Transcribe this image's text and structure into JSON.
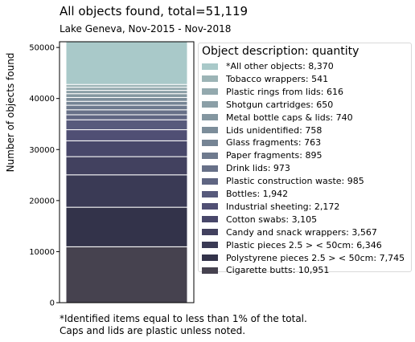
{
  "chart_data": {
    "type": "bar",
    "title": "All objects found,  total=51,119",
    "subtitle": "Lake Geneva, Nov-2015 - Nov-2018",
    "ylabel": "Number of objects found",
    "xlabel": "",
    "ylim": [
      0,
      51119
    ],
    "yticks": [
      0,
      10000,
      20000,
      30000,
      40000,
      50000
    ],
    "ytick_labels": [
      "0",
      "10000",
      "20000",
      "30000",
      "40000",
      "50000"
    ],
    "legend_title": "Object description: quantity",
    "legend_placement": "right",
    "grid": false,
    "series": [
      {
        "name": "Cigarette butts",
        "label": "Cigarette butts: 10,951",
        "value": 10951,
        "color": "#46424f"
      },
      {
        "name": "Polystyrene pieces 2.5 > < 50cm",
        "label": "Polystyrene pieces 2.5 > < 50cm: 7,745",
        "value": 7745,
        "color": "#33334a"
      },
      {
        "name": "Plastic pieces 2.5 > < 50cm",
        "label": "Plastic pieces 2.5 > < 50cm: 6,346",
        "value": 6346,
        "color": "#3a3a55"
      },
      {
        "name": "Candy and snack wrappers",
        "label": "Candy and snack wrappers: 3,567",
        "value": 3567,
        "color": "#42415f"
      },
      {
        "name": "Cotton swabs",
        "label": "Cotton swabs: 3,105",
        "value": 3105,
        "color": "#48476a"
      },
      {
        "name": "Industrial sheeting",
        "label": "Industrial sheeting: 2,172",
        "value": 2172,
        "color": "#504f74"
      },
      {
        "name": "Bottles",
        "label": "Bottles: 1,942",
        "value": 1942,
        "color": "#575a7c"
      },
      {
        "name": "Plastic construction waste",
        "label": "Plastic construction waste: 985",
        "value": 985,
        "color": "#5f6582"
      },
      {
        "name": "Drink lids",
        "label": "Drink lids: 973",
        "value": 973,
        "color": "#677088"
      },
      {
        "name": "Paper fragments",
        "label": "Paper fragments: 895",
        "value": 895,
        "color": "#6e7a8e"
      },
      {
        "name": "Glass fragments",
        "label": "Glass fragments: 763",
        "value": 763,
        "color": "#758494"
      },
      {
        "name": "Lids unidentified",
        "label": "Lids unidentified: 758",
        "value": 758,
        "color": "#7c8d9a"
      },
      {
        "name": "Metal bottle caps & lids",
        "label": "Metal bottle caps & lids: 740",
        "value": 740,
        "color": "#8396a0"
      },
      {
        "name": "Shotgun cartridges",
        "label": "Shotgun cartridges: 650",
        "value": 650,
        "color": "#8b9fa7"
      },
      {
        "name": "Plastic rings from lids",
        "label": "Plastic rings from lids: 616",
        "value": 616,
        "color": "#93a9ae"
      },
      {
        "name": "Tobacco wrappers",
        "label": "Tobacco wrappers: 541",
        "value": 541,
        "color": "#9cb4b6"
      },
      {
        "name": "*All other objects",
        "label": "*All other objects: 8,370",
        "value": 8370,
        "color": "#a9c9c9"
      }
    ]
  },
  "footnote": {
    "line1": "*Identified items equal to less than 1% of the total.",
    "line2": "Caps and lids are plastic unless noted."
  }
}
